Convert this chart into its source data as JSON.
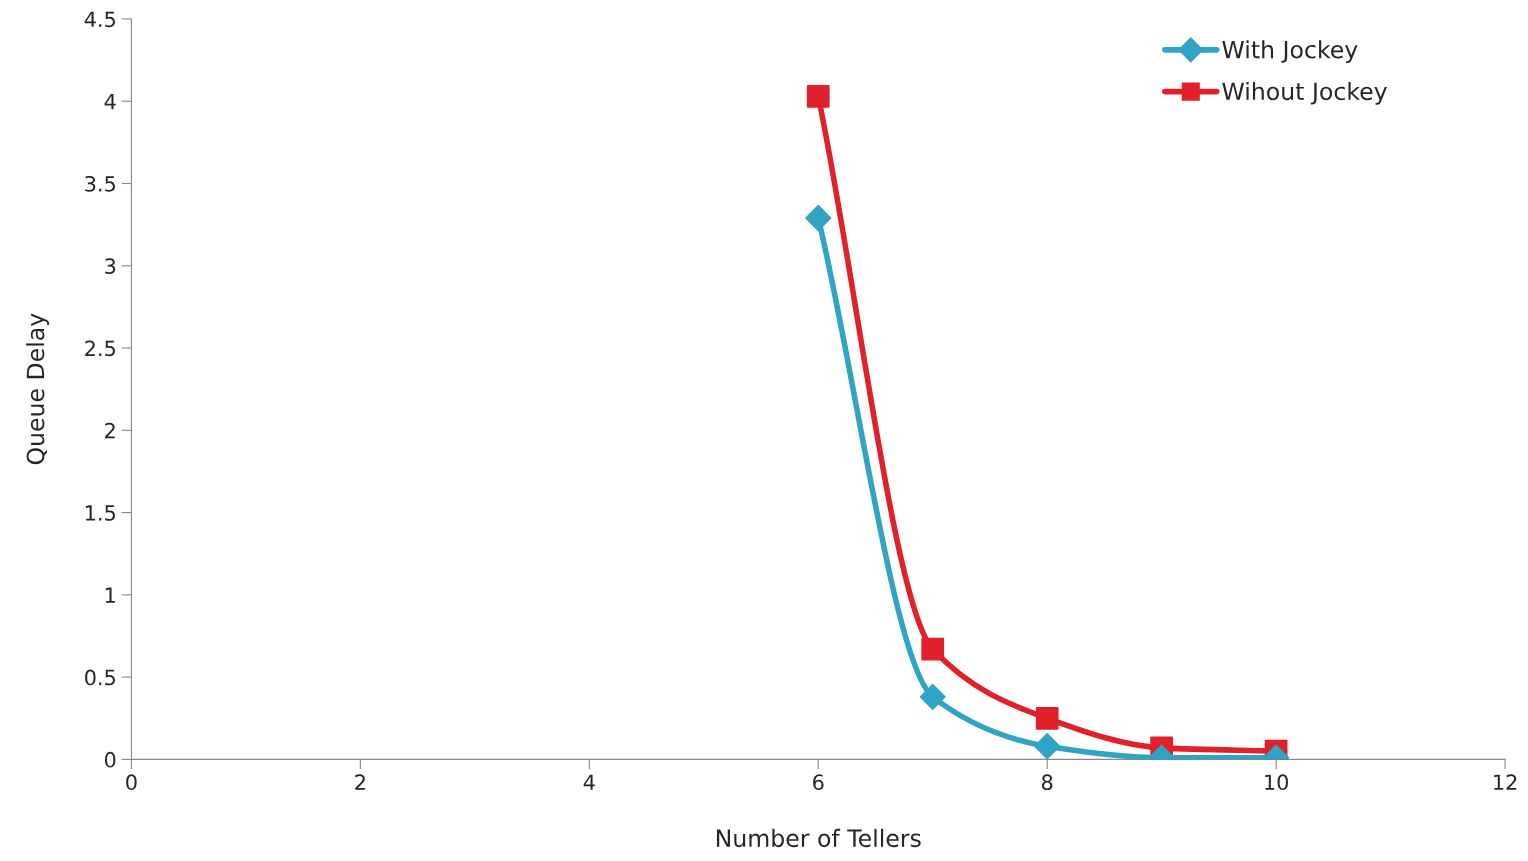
{
  "chart_data": {
    "type": "line",
    "xlabel": "Number of Tellers",
    "ylabel": "Queue Delay",
    "series": [
      {
        "name": "With Jockey",
        "color": "#31a3c4",
        "marker": "diamond",
        "x": [
          6,
          7,
          8,
          9,
          10
        ],
        "values": [
          3.29,
          0.38,
          0.08,
          0.01,
          0.01
        ]
      },
      {
        "name": "Wihout Jockey",
        "color": "#e0202a",
        "marker": "square",
        "x": [
          6,
          7,
          8,
          9,
          10
        ],
        "values": [
          4.03,
          0.67,
          0.25,
          0.07,
          0.05
        ]
      }
    ],
    "xlim": [
      0,
      12
    ],
    "xticks": [
      0,
      2,
      4,
      6,
      8,
      10,
      12
    ],
    "ylim": [
      0,
      4.5
    ],
    "yticks": [
      0,
      0.5,
      1,
      1.5,
      2,
      2.5,
      3,
      3.5,
      4,
      4.5
    ],
    "grid": false,
    "legend": "top right",
    "line_style": "solid"
  }
}
